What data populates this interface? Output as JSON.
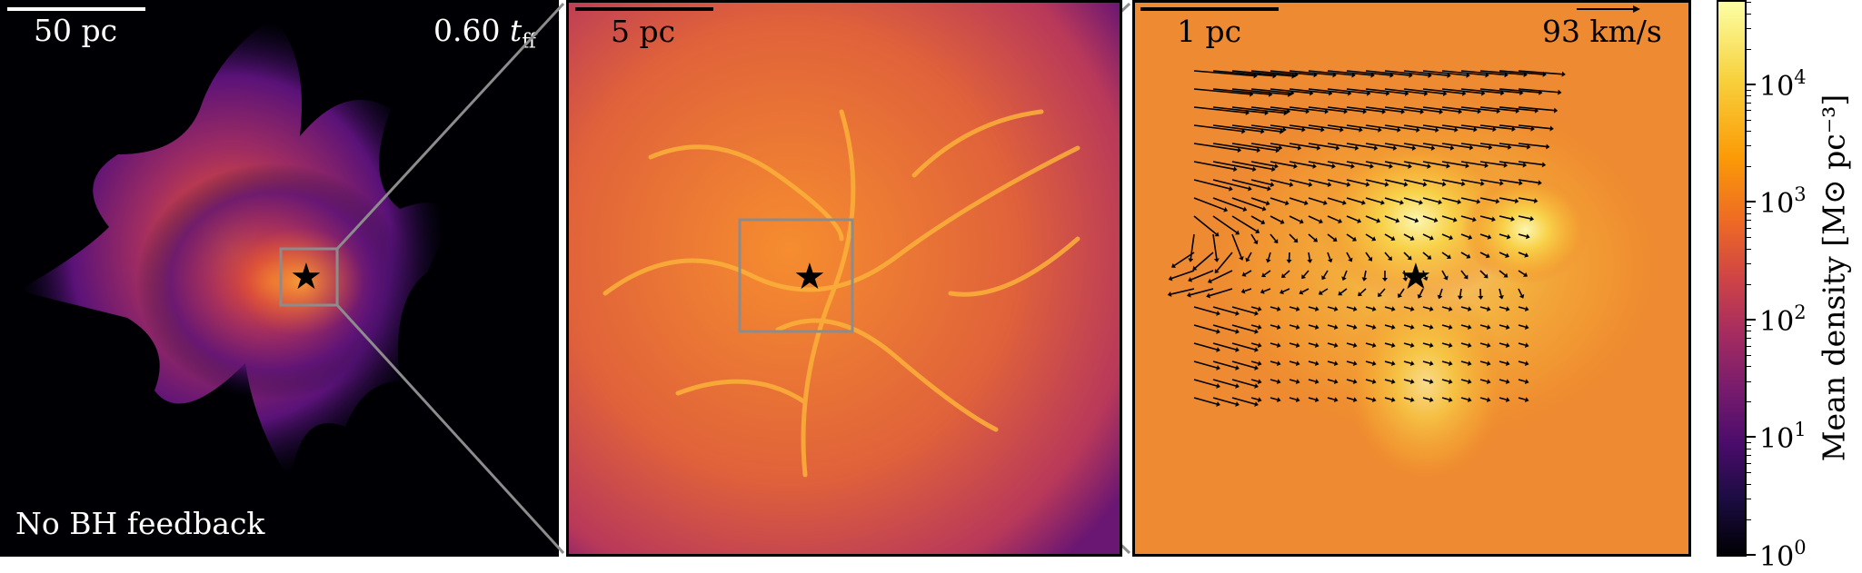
{
  "panels": {
    "wide": {
      "scalebar_label": "50 pc",
      "time_value": "0.60",
      "time_symbol": "t",
      "time_subscript": "ff",
      "bottom_label": "No BH feedback"
    },
    "mid": {
      "scalebar_label": "5 pc"
    },
    "zoom": {
      "scalebar_label": "1 pc",
      "arrow_key_label": "93 km/s"
    }
  },
  "marker": {
    "icon": "star-icon",
    "glyph": "★"
  },
  "colorbar": {
    "title": "Mean density [M⊙ pc⁻³]",
    "scale": "log",
    "range": [
      1,
      50000
    ],
    "ticks": [
      {
        "base": "10",
        "exp": "0"
      },
      {
        "base": "10",
        "exp": "1"
      },
      {
        "base": "10",
        "exp": "2"
      },
      {
        "base": "10",
        "exp": "3"
      },
      {
        "base": "10",
        "exp": "4"
      }
    ],
    "colormap": "inferno"
  },
  "colors": {
    "zoom_box": "#8c8c8c",
    "star": "#000000",
    "text_light": "#ffffff",
    "text_dark": "#000000"
  }
}
